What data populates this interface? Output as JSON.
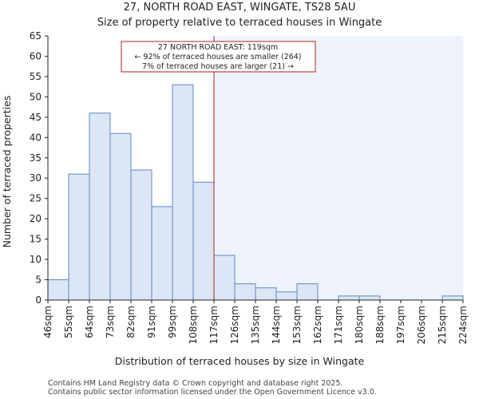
{
  "chart_data": {
    "type": "bar",
    "title": "27, NORTH ROAD EAST, WINGATE, TS28 5AU",
    "subtitle": "Size of property relative to terraced houses in Wingate",
    "xlabel": "Distribution of terraced houses by size in Wingate",
    "ylabel": "Number of terraced properties",
    "x_tick_labels": [
      "46sqm",
      "55sqm",
      "64sqm",
      "73sqm",
      "82sqm",
      "91sqm",
      "99sqm",
      "108sqm",
      "117sqm",
      "126sqm",
      "135sqm",
      "144sqm",
      "153sqm",
      "162sqm",
      "171sqm",
      "180sqm",
      "188sqm",
      "197sqm",
      "206sqm",
      "215sqm",
      "224sqm"
    ],
    "values": [
      5,
      31,
      46,
      41,
      32,
      23,
      53,
      29,
      11,
      4,
      3,
      2,
      4,
      0,
      1,
      1,
      0,
      0,
      0,
      1
    ],
    "ylim": [
      0,
      65
    ],
    "y_ticks": [
      0,
      5,
      10,
      15,
      20,
      25,
      30,
      35,
      40,
      45,
      50,
      55,
      60,
      65
    ],
    "grid": false,
    "marker": {
      "value_bin_position": 8.0,
      "label": "27 NORTH ROAD EAST: 119sqm",
      "line2": "← 92% of terraced houses are smaller (264)",
      "line3": "7% of terraced houses are larger (21) →"
    },
    "colors": {
      "bar_fill": "#dce6f5",
      "bar_stroke": "#5b88c8",
      "highlight_bg": "#eef2fb",
      "marker_line": "#b22222",
      "axis": "#222222"
    }
  },
  "footer": {
    "line1": "Contains HM Land Registry data © Crown copyright and database right 2025.",
    "line2": "Contains public sector information licensed under the Open Government Licence v3.0."
  }
}
